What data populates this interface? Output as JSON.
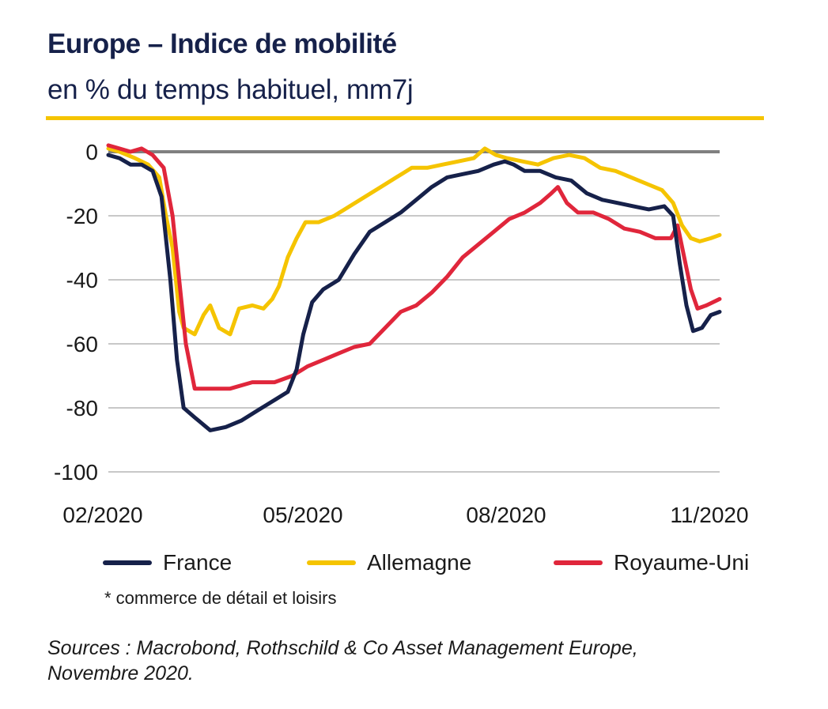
{
  "header": {
    "title": "Europe – Indice de mobilité",
    "subtitle": "en % du temps habituel, mm7j"
  },
  "note": "* commerce de détail et loisirs",
  "source": {
    "line1": "Sources : Macrobond, Rothschild & Co Asset Management Europe,",
    "line2": "Novembre 2020."
  },
  "colors": {
    "France": "#16214a",
    "Allemagne": "#f5c400",
    "Royaume-Uni": "#e0263b",
    "rule": "#f5c400",
    "zero_line": "#808080",
    "grid": "#c8c8c8"
  },
  "chart_data": {
    "type": "line",
    "x_ticks": [
      "02/2020",
      "05/2020",
      "08/2020",
      "11/2020"
    ],
    "y_ticks": [
      0,
      -20,
      -40,
      -60,
      -80,
      -100
    ],
    "ylim": [
      -100,
      0
    ],
    "xlim": [
      "2020-02-15",
      "2020-11-17"
    ],
    "grid": true,
    "legend_position": "bottom",
    "series": [
      {
        "name": "France",
        "points": [
          [
            "2020-02-15",
            -1
          ],
          [
            "2020-02-20",
            -2
          ],
          [
            "2020-02-25",
            -4
          ],
          [
            "2020-03-01",
            -4
          ],
          [
            "2020-03-06",
            -6
          ],
          [
            "2020-03-10",
            -14
          ],
          [
            "2020-03-14",
            -40
          ],
          [
            "2020-03-17",
            -65
          ],
          [
            "2020-03-20",
            -80
          ],
          [
            "2020-03-25",
            -83
          ],
          [
            "2020-04-01",
            -87
          ],
          [
            "2020-04-08",
            -86
          ],
          [
            "2020-04-15",
            -84
          ],
          [
            "2020-04-22",
            -81
          ],
          [
            "2020-04-29",
            -78
          ],
          [
            "2020-05-06",
            -75
          ],
          [
            "2020-05-10",
            -68
          ],
          [
            "2020-05-13",
            -57
          ],
          [
            "2020-05-17",
            -47
          ],
          [
            "2020-05-22",
            -43
          ],
          [
            "2020-05-29",
            -40
          ],
          [
            "2020-06-05",
            -32
          ],
          [
            "2020-06-12",
            -25
          ],
          [
            "2020-06-19",
            -22
          ],
          [
            "2020-06-26",
            -19
          ],
          [
            "2020-07-03",
            -15
          ],
          [
            "2020-07-10",
            -11
          ],
          [
            "2020-07-17",
            -8
          ],
          [
            "2020-07-24",
            -7
          ],
          [
            "2020-07-31",
            -6
          ],
          [
            "2020-08-07",
            -4
          ],
          [
            "2020-08-12",
            -3
          ],
          [
            "2020-08-16",
            -4
          ],
          [
            "2020-08-21",
            -6
          ],
          [
            "2020-08-28",
            -6
          ],
          [
            "2020-09-04",
            -8
          ],
          [
            "2020-09-11",
            -9
          ],
          [
            "2020-09-18",
            -13
          ],
          [
            "2020-09-25",
            -15
          ],
          [
            "2020-10-02",
            -16
          ],
          [
            "2020-10-09",
            -17
          ],
          [
            "2020-10-16",
            -18
          ],
          [
            "2020-10-23",
            -17
          ],
          [
            "2020-10-27",
            -20
          ],
          [
            "2020-10-30",
            -35
          ],
          [
            "2020-11-02",
            -48
          ],
          [
            "2020-11-05",
            -56
          ],
          [
            "2020-11-09",
            -55
          ],
          [
            "2020-11-13",
            -51
          ],
          [
            "2020-11-17",
            -50
          ]
        ]
      },
      {
        "name": "Allemagne",
        "points": [
          [
            "2020-02-15",
            1
          ],
          [
            "2020-02-20",
            0
          ],
          [
            "2020-02-27",
            -2
          ],
          [
            "2020-03-04",
            -4
          ],
          [
            "2020-03-09",
            -8
          ],
          [
            "2020-03-12",
            -20
          ],
          [
            "2020-03-15",
            -30
          ],
          [
            "2020-03-18",
            -50
          ],
          [
            "2020-03-20",
            -55
          ],
          [
            "2020-03-25",
            -57
          ],
          [
            "2020-03-29",
            -51
          ],
          [
            "2020-04-01",
            -48
          ],
          [
            "2020-04-05",
            -55
          ],
          [
            "2020-04-10",
            -57
          ],
          [
            "2020-04-14",
            -49
          ],
          [
            "2020-04-20",
            -48
          ],
          [
            "2020-04-25",
            -49
          ],
          [
            "2020-04-29",
            -46
          ],
          [
            "2020-05-02",
            -42
          ],
          [
            "2020-05-06",
            -33
          ],
          [
            "2020-05-10",
            -27
          ],
          [
            "2020-05-14",
            -22
          ],
          [
            "2020-05-20",
            -22
          ],
          [
            "2020-05-27",
            -20
          ],
          [
            "2020-06-03",
            -17
          ],
          [
            "2020-06-10",
            -14
          ],
          [
            "2020-06-17",
            -11
          ],
          [
            "2020-06-24",
            -8
          ],
          [
            "2020-07-01",
            -5
          ],
          [
            "2020-07-08",
            -5
          ],
          [
            "2020-07-15",
            -4
          ],
          [
            "2020-07-22",
            -3
          ],
          [
            "2020-07-29",
            -2
          ],
          [
            "2020-08-03",
            1
          ],
          [
            "2020-08-08",
            -1
          ],
          [
            "2020-08-13",
            -2
          ],
          [
            "2020-08-20",
            -3
          ],
          [
            "2020-08-27",
            -4
          ],
          [
            "2020-09-03",
            -2
          ],
          [
            "2020-09-10",
            -1
          ],
          [
            "2020-09-17",
            -2
          ],
          [
            "2020-09-24",
            -5
          ],
          [
            "2020-10-01",
            -6
          ],
          [
            "2020-10-08",
            -8
          ],
          [
            "2020-10-15",
            -10
          ],
          [
            "2020-10-22",
            -12
          ],
          [
            "2020-10-27",
            -16
          ],
          [
            "2020-10-31",
            -23
          ],
          [
            "2020-11-04",
            -27
          ],
          [
            "2020-11-08",
            -28
          ],
          [
            "2020-11-13",
            -27
          ],
          [
            "2020-11-17",
            -26
          ]
        ]
      },
      {
        "name": "Royaume-Uni",
        "points": [
          [
            "2020-02-15",
            2
          ],
          [
            "2020-02-20",
            1
          ],
          [
            "2020-02-25",
            0
          ],
          [
            "2020-03-01",
            1
          ],
          [
            "2020-03-06",
            -1
          ],
          [
            "2020-03-11",
            -5
          ],
          [
            "2020-03-15",
            -20
          ],
          [
            "2020-03-18",
            -40
          ],
          [
            "2020-03-21",
            -60
          ],
          [
            "2020-03-25",
            -74
          ],
          [
            "2020-04-01",
            -74
          ],
          [
            "2020-04-10",
            -74
          ],
          [
            "2020-04-20",
            -72
          ],
          [
            "2020-04-30",
            -72
          ],
          [
            "2020-05-08",
            -70
          ],
          [
            "2020-05-15",
            -67
          ],
          [
            "2020-05-22",
            -65
          ],
          [
            "2020-05-29",
            -63
          ],
          [
            "2020-06-05",
            -61
          ],
          [
            "2020-06-12",
            -60
          ],
          [
            "2020-06-19",
            -55
          ],
          [
            "2020-06-26",
            -50
          ],
          [
            "2020-07-03",
            -48
          ],
          [
            "2020-07-10",
            -44
          ],
          [
            "2020-07-17",
            -39
          ],
          [
            "2020-07-24",
            -33
          ],
          [
            "2020-07-31",
            -29
          ],
          [
            "2020-08-07",
            -25
          ],
          [
            "2020-08-14",
            -21
          ],
          [
            "2020-08-21",
            -19
          ],
          [
            "2020-08-28",
            -16
          ],
          [
            "2020-09-02",
            -13
          ],
          [
            "2020-09-05",
            -11
          ],
          [
            "2020-09-09",
            -16
          ],
          [
            "2020-09-14",
            -19
          ],
          [
            "2020-09-21",
            -19
          ],
          [
            "2020-09-28",
            -21
          ],
          [
            "2020-10-05",
            -24
          ],
          [
            "2020-10-12",
            -25
          ],
          [
            "2020-10-19",
            -27
          ],
          [
            "2020-10-26",
            -27
          ],
          [
            "2020-10-29",
            -23
          ],
          [
            "2020-11-01",
            -33
          ],
          [
            "2020-11-04",
            -43
          ],
          [
            "2020-11-07",
            -49
          ],
          [
            "2020-11-11",
            -48
          ],
          [
            "2020-11-17",
            -46
          ]
        ]
      }
    ]
  }
}
